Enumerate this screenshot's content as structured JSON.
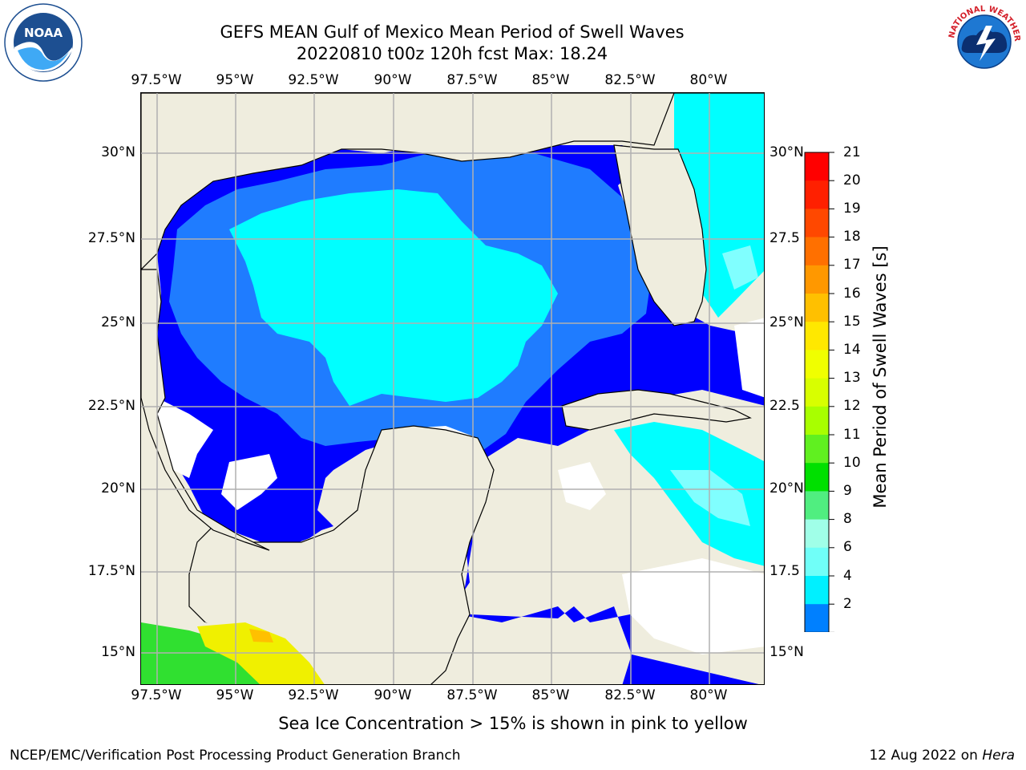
{
  "title_line1": "GEFS MEAN Gulf of Mexico Mean Period of Swell Waves",
  "title_line2": "20220810 t00z 120h fcst   Max: 18.24",
  "lon_labels": [
    "97.5°W",
    "95°W",
    "92.5°W",
    "90°W",
    "87.5°W",
    "85°W",
    "82.5°W",
    "80°W"
  ],
  "lat_labels_left": [
    "30°N",
    "27.5°N",
    "25°N",
    "22.5°N",
    "20°N",
    "17.5°N",
    "15°N"
  ],
  "lat_labels_right": [
    "30°N",
    "27.5",
    "25°N",
    "22.5",
    "20°N",
    "17.5",
    "15°N"
  ],
  "colorbar": {
    "label": "Mean Period of Swell Waves [s]",
    "ticks": [
      "21",
      "20",
      "19",
      "18",
      "17",
      "16",
      "15",
      "14",
      "13",
      "12",
      "11",
      "10",
      "9",
      "8",
      "6",
      "4",
      "2"
    ],
    "colors": [
      "#ff0000",
      "#ff2000",
      "#ff4800",
      "#ff7000",
      "#ff9800",
      "#ffc000",
      "#ffe800",
      "#f0ff00",
      "#d8ff00",
      "#a8ff00",
      "#60f020",
      "#00e000",
      "#50ee80",
      "#a0ffe8",
      "#70fff8",
      "#00f0ff",
      "#0080ff",
      "#0000ff"
    ]
  },
  "colors": {
    "land": "#efedde",
    "ocean_2_4": "#0000ff",
    "ocean_4_6": "#1f7cff",
    "ocean_6_8": "#00ffff",
    "ocean_8_9": "#80ffff",
    "ice_green": "#30e030",
    "ice_yellow": "#f0f000",
    "grid": "#b0b0b0"
  },
  "logos": {
    "noaa_text": "NOAA",
    "noaa_ring": "NATIONAL OCEANIC AND ATMOSPHERIC ADMINISTRATION · U.S. DEPARTMENT OF COMMERCE",
    "nws_ring": "NATIONAL WEATHER SERVICE"
  },
  "ice_note": "Sea Ice Concentration > 15% is shown in pink to yellow",
  "footer_left": "NCEP/EMC/Verification Post Processing Product Generation Branch",
  "footer_date": "12 Aug 2022 on ",
  "footer_host": "Hera"
}
